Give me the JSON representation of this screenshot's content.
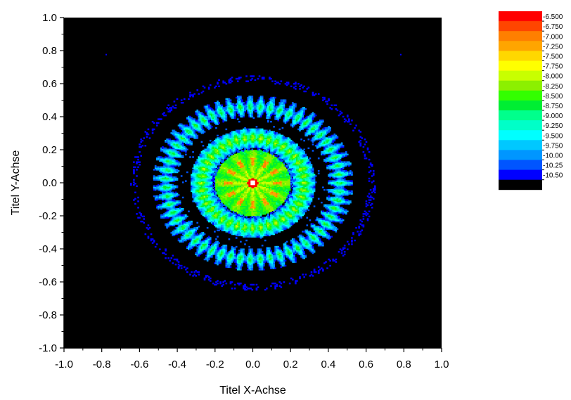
{
  "chart_data": {
    "type": "heatmap",
    "title": "",
    "xlabel": "Titel X-Achse",
    "ylabel": "Titel Y-Achse",
    "xlim": [
      -1.0,
      1.0
    ],
    "ylim": [
      -1.0,
      1.0
    ],
    "x_ticks": [
      "-1.0",
      "-0.8",
      "-0.6",
      "-0.4",
      "-0.2",
      "0.0",
      "0.2",
      "0.4",
      "0.6",
      "0.8",
      "1.0"
    ],
    "y_ticks": [
      "1.0",
      "0.8",
      "0.6",
      "0.4",
      "0.2",
      "0.0",
      "-0.2",
      "-0.4",
      "-0.6",
      "-0.8",
      "-1.0"
    ],
    "background_color": "#000000",
    "grid": false,
    "features": [
      {
        "name": "central peak",
        "r": 0.0,
        "level": -6.5
      },
      {
        "name": "inner disk",
        "r_max": 0.2,
        "level": -8.25
      },
      {
        "name": "ring 2",
        "r": 0.27,
        "level": -9.0
      },
      {
        "name": "ring 3",
        "r": 0.46,
        "level": -9.75
      },
      {
        "name": "faint ring",
        "r": 0.63,
        "level": -10.5
      }
    ],
    "colorbar": {
      "placement": "right",
      "labels": [
        "-6.500",
        "-6.750",
        "-7.000",
        "-7.250",
        "-7.500",
        "-7.750",
        "-8.000",
        "-8.250",
        "-8.500",
        "-8.750",
        "-9.000",
        "-9.250",
        "-9.500",
        "-9.750",
        "-10.00",
        "-10.25",
        "-10.50"
      ],
      "colors": [
        "#ff0000",
        "#ff4500",
        "#ff7f00",
        "#ffa500",
        "#ffd700",
        "#ffff00",
        "#c8ff00",
        "#8cf000",
        "#33ff00",
        "#00ee33",
        "#00ff8c",
        "#00ffc8",
        "#00ffff",
        "#00c8ff",
        "#0096ff",
        "#0055ff",
        "#0000ff",
        "#000000"
      ]
    }
  }
}
